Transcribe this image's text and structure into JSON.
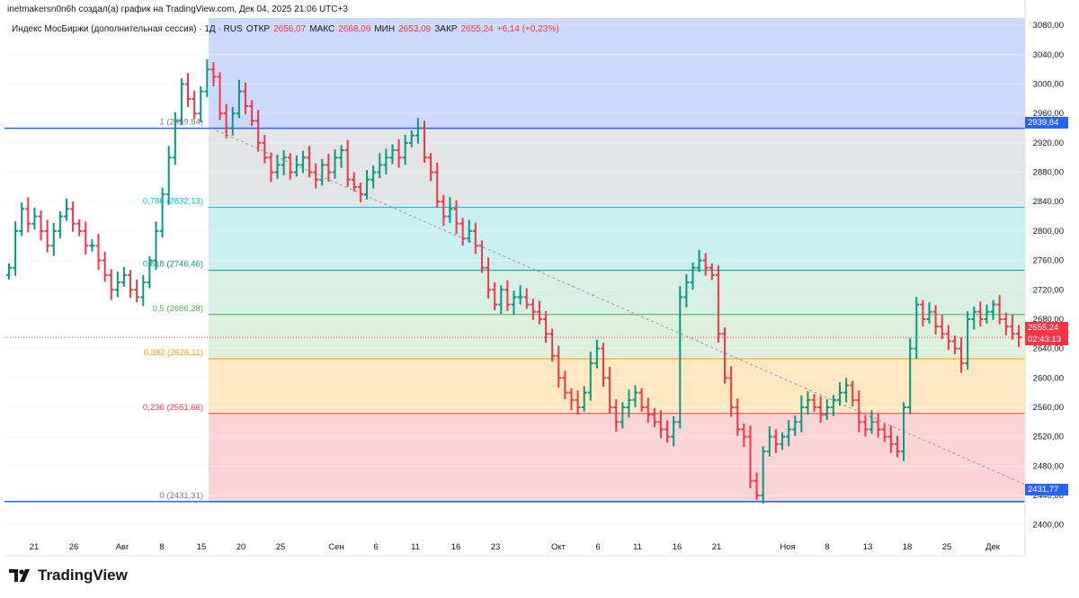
{
  "header": {
    "author_line": "inetmakersn0n6h создал(а) график на TradingView.com, Дек 04, 2025 21:06 UTC+3",
    "symbol": "Индекс МосБиржи (дополнительная сессия) · 1Д · RUS",
    "open_label": "ОТКР",
    "open_value": "2656,07",
    "high_label": "МАКС",
    "high_value": "2668,09",
    "low_label": "МИН",
    "low_value": "2653,09",
    "close_label": "ЗАКР",
    "close_value": "2655,24",
    "change": "+6,14 (+0,23%)"
  },
  "brand": {
    "name": "TradingView"
  },
  "price_labels": {
    "level_high": "2939,84",
    "current": "2655,24",
    "countdown": "02:43:13",
    "level_low": "2431,77"
  },
  "colors": {
    "up": "#089981",
    "down": "#f23645",
    "level_line": "#2962ff",
    "zone_top": "#cdd9fb",
    "zone_1": "#e3e4e6",
    "zone_2": "#c9eff0",
    "zone_3": "#d8efe6",
    "zone_4": "#dcf0dc",
    "zone_5": "#fde8c2",
    "zone_6": "#fbd4d8"
  },
  "chart_data": {
    "type": "ohlc",
    "ylim": [
      2380,
      3090
    ],
    "y_ticks": [
      "2400,00",
      "2440,00",
      "2480,00",
      "2520,00",
      "2560,00",
      "2600,00",
      "2640,00",
      "2680,00",
      "2720,00",
      "2760,00",
      "2800,00",
      "2840,00",
      "2880,00",
      "2920,00",
      "2960,00",
      "3000,00",
      "3040,00",
      "3080,00"
    ],
    "x_ticks": [
      "21",
      "26",
      "Авг",
      "8",
      "15",
      "20",
      "25",
      "Сен",
      "6",
      "11",
      "16",
      "23",
      "Окт",
      "6",
      "11",
      "16",
      "21",
      "Ноя",
      "8",
      "13",
      "18",
      "25",
      "Дек"
    ],
    "horizontal_levels": [
      2939.84,
      2431.77
    ],
    "fibonacci": [
      {
        "ratio": "1",
        "value": 2939.84,
        "label": "1 (2939,84)"
      },
      {
        "ratio": "0,786",
        "value": 2832.13,
        "label": "0,786 (2832,13)"
      },
      {
        "ratio": "0,618",
        "value": 2746.46,
        "label": "0,618 (2746,46)"
      },
      {
        "ratio": "0,5",
        "value": 2686.28,
        "label": "0,5 (2686,28)"
      },
      {
        "ratio": "0,382",
        "value": 2626.11,
        "label": "0,382 (2626,11)"
      },
      {
        "ratio": "0,236",
        "value": 2551.66,
        "label": "0,236 (2551,66)"
      },
      {
        "ratio": "0",
        "value": 2431.31,
        "label": "0 (2431,31)"
      }
    ],
    "trendline": [
      [
        2940,
        2455
      ]
    ],
    "closes": [
      2750,
      2800,
      2830,
      2810,
      2820,
      2800,
      2780,
      2800,
      2820,
      2830,
      2810,
      2800,
      2780,
      2780,
      2760,
      2740,
      2720,
      2730,
      2740,
      2720,
      2710,
      2730,
      2760,
      2800,
      2850,
      2900,
      2950,
      3000,
      2980,
      2960,
      2990,
      3020,
      3010,
      2960,
      2940,
      2960,
      2990,
      2970,
      2950,
      2920,
      2900,
      2880,
      2890,
      2900,
      2880,
      2890,
      2900,
      2880,
      2870,
      2890,
      2880,
      2900,
      2910,
      2870,
      2860,
      2850,
      2870,
      2880,
      2890,
      2900,
      2910,
      2900,
      2920,
      2930,
      2940,
      2900,
      2880,
      2840,
      2820,
      2830,
      2810,
      2790,
      2800,
      2780,
      2750,
      2720,
      2700,
      2720,
      2700,
      2710,
      2710,
      2700,
      2690,
      2680,
      2660,
      2630,
      2600,
      2580,
      2570,
      2560,
      2580,
      2620,
      2640,
      2600,
      2560,
      2540,
      2560,
      2570,
      2580,
      2560,
      2550,
      2540,
      2530,
      2520,
      2540,
      2710,
      2730,
      2750,
      2760,
      2750,
      2740,
      2660,
      2600,
      2560,
      2530,
      2520,
      2460,
      2440,
      2500,
      2520,
      2510,
      2520,
      2530,
      2540,
      2560,
      2570,
      2560,
      2550,
      2560,
      2570,
      2580,
      2590,
      2570,
      2540,
      2530,
      2540,
      2530,
      2520,
      2510,
      2500,
      2560,
      2640,
      2700,
      2680,
      2690,
      2670,
      2660,
      2650,
      2640,
      2620,
      2680,
      2690,
      2680,
      2690,
      2700,
      2680,
      2670,
      2660,
      2655.24
    ]
  }
}
